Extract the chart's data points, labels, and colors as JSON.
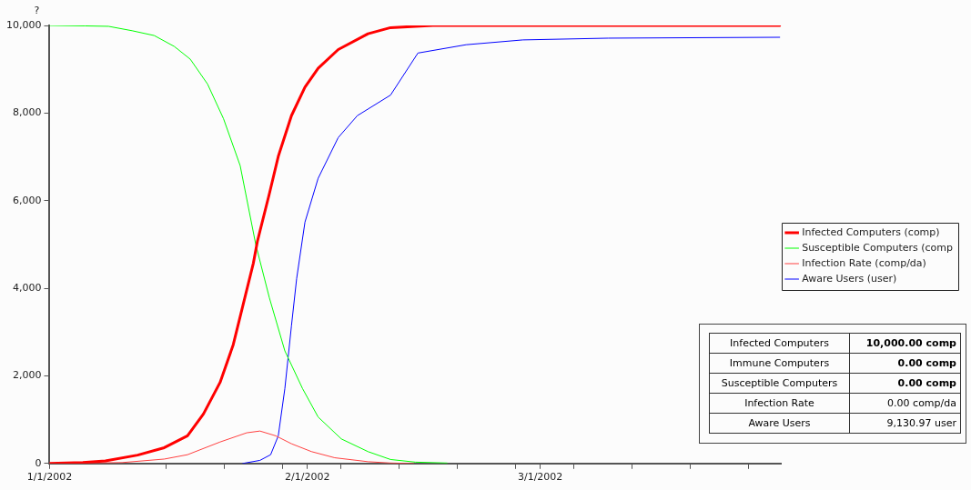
{
  "chart_data": {
    "type": "line",
    "ylabel": "?",
    "xlim": [
      "2002-01-01",
      "2002-03-30"
    ],
    "xticks": [
      {
        "value": "2002-01-01",
        "label": "1/1/2002"
      },
      {
        "value": "2002-01-15",
        "label": null
      },
      {
        "value": "2002-01-22",
        "label": null
      },
      {
        "value": "2002-01-29",
        "label": null
      },
      {
        "value": "2002-02-01",
        "label": "2/1/2002"
      },
      {
        "value": "2002-02-05",
        "label": null
      },
      {
        "value": "2002-02-12",
        "label": null
      },
      {
        "value": "2002-02-19",
        "label": null
      },
      {
        "value": "2002-02-26",
        "label": null
      },
      {
        "value": "2002-03-01",
        "label": "3/1/2002"
      },
      {
        "value": "2002-03-05",
        "label": null
      },
      {
        "value": "2002-03-12",
        "label": null
      },
      {
        "value": "2002-03-19",
        "label": null
      },
      {
        "value": "2002-03-26",
        "label": null
      }
    ],
    "ylim": [
      0,
      10000
    ],
    "yticks": [
      {
        "value": 0,
        "label": "0"
      },
      {
        "value": 2000,
        "label": "2,000"
      },
      {
        "value": 4000,
        "label": "4,000"
      },
      {
        "value": 6000,
        "label": "6,000"
      },
      {
        "value": 8000,
        "label": "8,000"
      },
      {
        "value": 10000,
        "label": "10,000"
      }
    ],
    "grid": false,
    "legend": "right",
    "marker": "none",
    "line_style": "solid",
    "series": [
      {
        "name": "Infected Computers (comp)",
        "color": "#ff0000",
        "x": [
          "2002-01-01",
          "2002-01-05",
          "2002-01-07T17:00",
          "2002-01-11T14:00",
          "2002-01-14T19:00",
          "2002-01-17T14:00",
          "2002-01-19T12:00",
          "2002-01-21T12:00",
          "2002-01-23T02:00",
          "2002-01-24T07:00",
          "2002-01-25T12:00",
          "2002-01-26",
          "2002-01-27T10:00",
          "2002-01-28T12:00",
          "2002-01-30T02:00",
          "2002-01-31T17:00",
          "2002-02-02T07:00",
          "2002-02-04T17:00",
          "2002-02-08T07:00",
          "2002-02-11",
          "2002-02-16T02:00",
          "2002-03-02",
          "2002-03-29T19:00"
        ],
        "values": [
          0,
          20,
          60,
          190,
          360,
          630,
          1130,
          1850,
          2710,
          3640,
          4570,
          5080,
          6150,
          7010,
          7940,
          8590,
          9020,
          9450,
          9810,
          9950,
          10000,
          10000,
          10000
        ]
      },
      {
        "name": "Susceptible Computers (comp",
        "color": "#00ff00",
        "x": [
          "2002-01-01",
          "2002-01-05T07:00",
          "2002-01-08T02:00",
          "2002-01-10T22:00",
          "2002-01-13T14:00",
          "2002-01-16",
          "2002-01-17T22:00",
          "2002-01-20",
          "2002-01-21T22:00",
          "2002-01-23T22:00",
          "2002-01-25T19:00",
          "2002-01-27T10:00",
          "2002-01-29T07:00",
          "2002-01-31T10:00",
          "2002-02-02T07:00",
          "2002-02-05T02:00",
          "2002-02-08T07:00",
          "2002-02-11",
          "2002-02-14",
          "2002-02-17T19:00"
        ],
        "values": [
          10000,
          9990,
          9980,
          9880,
          9770,
          9520,
          9230,
          8660,
          7870,
          6800,
          5000,
          3790,
          2570,
          1710,
          1060,
          560,
          270,
          90,
          30,
          10
        ]
      },
      {
        "name": "Infection Rate (comp/da)",
        "color": "#ff4040",
        "x": [
          "2002-01-01",
          "2002-01-09T17:00",
          "2002-01-14T19:00",
          "2002-01-17T14:00",
          "2002-01-21T12:00",
          "2002-01-24T17:00",
          "2002-01-26T07:00",
          "2002-01-28T05:00",
          "2002-01-30T02:00",
          "2002-02-01T12:00",
          "2002-02-04T07:00",
          "2002-02-08T07:00",
          "2002-02-11",
          "2002-02-13T19:00"
        ],
        "values": [
          0,
          20,
          100,
          200,
          490,
          700,
          740,
          630,
          450,
          270,
          130,
          40,
          10,
          0
        ]
      },
      {
        "name": "Aware Users (user)",
        "color": "#0000ff",
        "x": [
          "2002-01-24T05:00",
          "2002-01-26T07:00",
          "2002-01-27T14:00",
          "2002-01-28T12:00",
          "2002-01-29T07:00",
          "2002-01-30T02:00",
          "2002-01-30T17:00",
          "2002-01-31T17:00",
          "2002-02-02T07:00",
          "2002-02-04T17:00",
          "2002-02-07",
          "2002-02-11",
          "2002-02-14T07:00",
          "2002-02-20T02:00",
          "2002-02-26T22:00",
          "2002-03-09T05:00",
          "2002-03-29T19:00"
        ],
        "values": [
          0,
          70,
          200,
          630,
          1710,
          3140,
          4220,
          5510,
          6510,
          7440,
          7940,
          8410,
          9370,
          9560,
          9670,
          9710,
          9730
        ]
      }
    ],
    "annotations": [
      "Infected Computers",
      "10,000.00 comp",
      "Immune Computers",
      "0.00 comp",
      "Susceptible Computers",
      "0.00 comp",
      "Infection Rate",
      "0.00 comp/da",
      "Aware Users",
      "9,130.97 user"
    ]
  }
}
